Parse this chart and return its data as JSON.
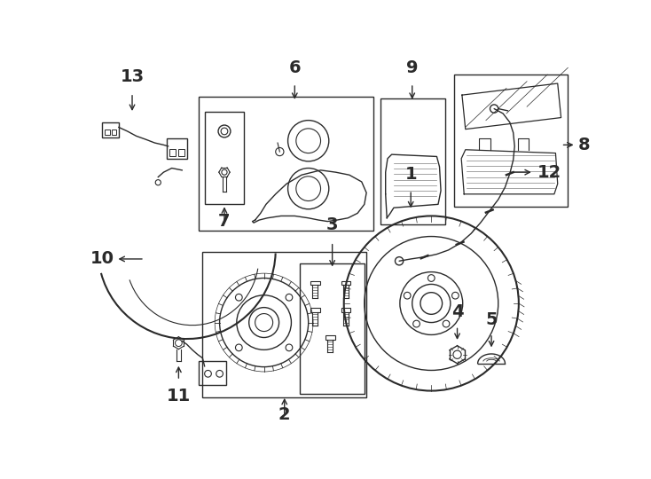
{
  "bg_color": "#ffffff",
  "lc": "#2a2a2a",
  "lw": 1.0,
  "fig_w": 7.34,
  "fig_h": 5.4,
  "dpi": 100,
  "xlim": [
    0,
    734
  ],
  "ylim": [
    0,
    540
  ]
}
